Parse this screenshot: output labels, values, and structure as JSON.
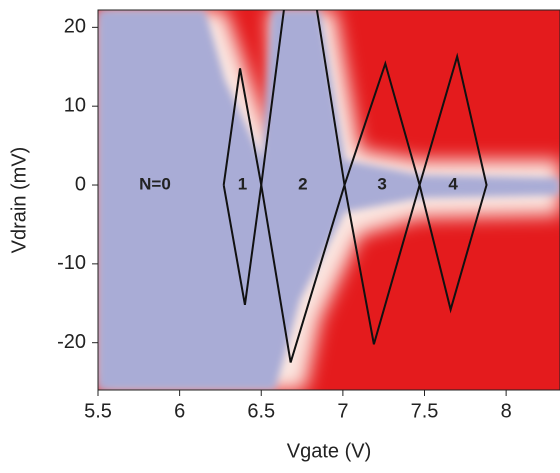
{
  "chart_data": {
    "type": "line",
    "x_label": "Vgate (V)",
    "y_label": "Vdrain (mV)",
    "xlim": [
      5.5,
      8.33
    ],
    "ylim": [
      -26,
      22.2
    ],
    "xticks": [
      5.5,
      6,
      6.5,
      7,
      7.5,
      8
    ],
    "yticks": [
      -20,
      -10,
      0,
      10,
      20
    ],
    "annotations": [
      "N=0"
    ],
    "series": [
      {
        "name": "1",
        "color": "#111111",
        "x": [
          6.27,
          6.37,
          6.5,
          6.4,
          6.27
        ],
        "y": [
          0,
          14.8,
          0,
          -15.2,
          0
        ]
      },
      {
        "name": "2",
        "color": "#111111",
        "x": [
          6.5,
          6.73,
          7.01,
          6.68,
          6.5
        ],
        "y": [
          0,
          36.8,
          0,
          -22.5,
          0
        ]
      },
      {
        "name": "3",
        "color": "#111111",
        "x": [
          7.01,
          7.26,
          7.47,
          7.19,
          7.01
        ],
        "y": [
          0,
          15.4,
          0,
          -20.2,
          0
        ]
      },
      {
        "name": "4",
        "color": "#111111",
        "x": [
          7.47,
          7.7,
          7.88,
          7.66,
          7.47
        ],
        "y": [
          0,
          16.3,
          0,
          -15.8,
          0
        ]
      }
    ]
  }
}
